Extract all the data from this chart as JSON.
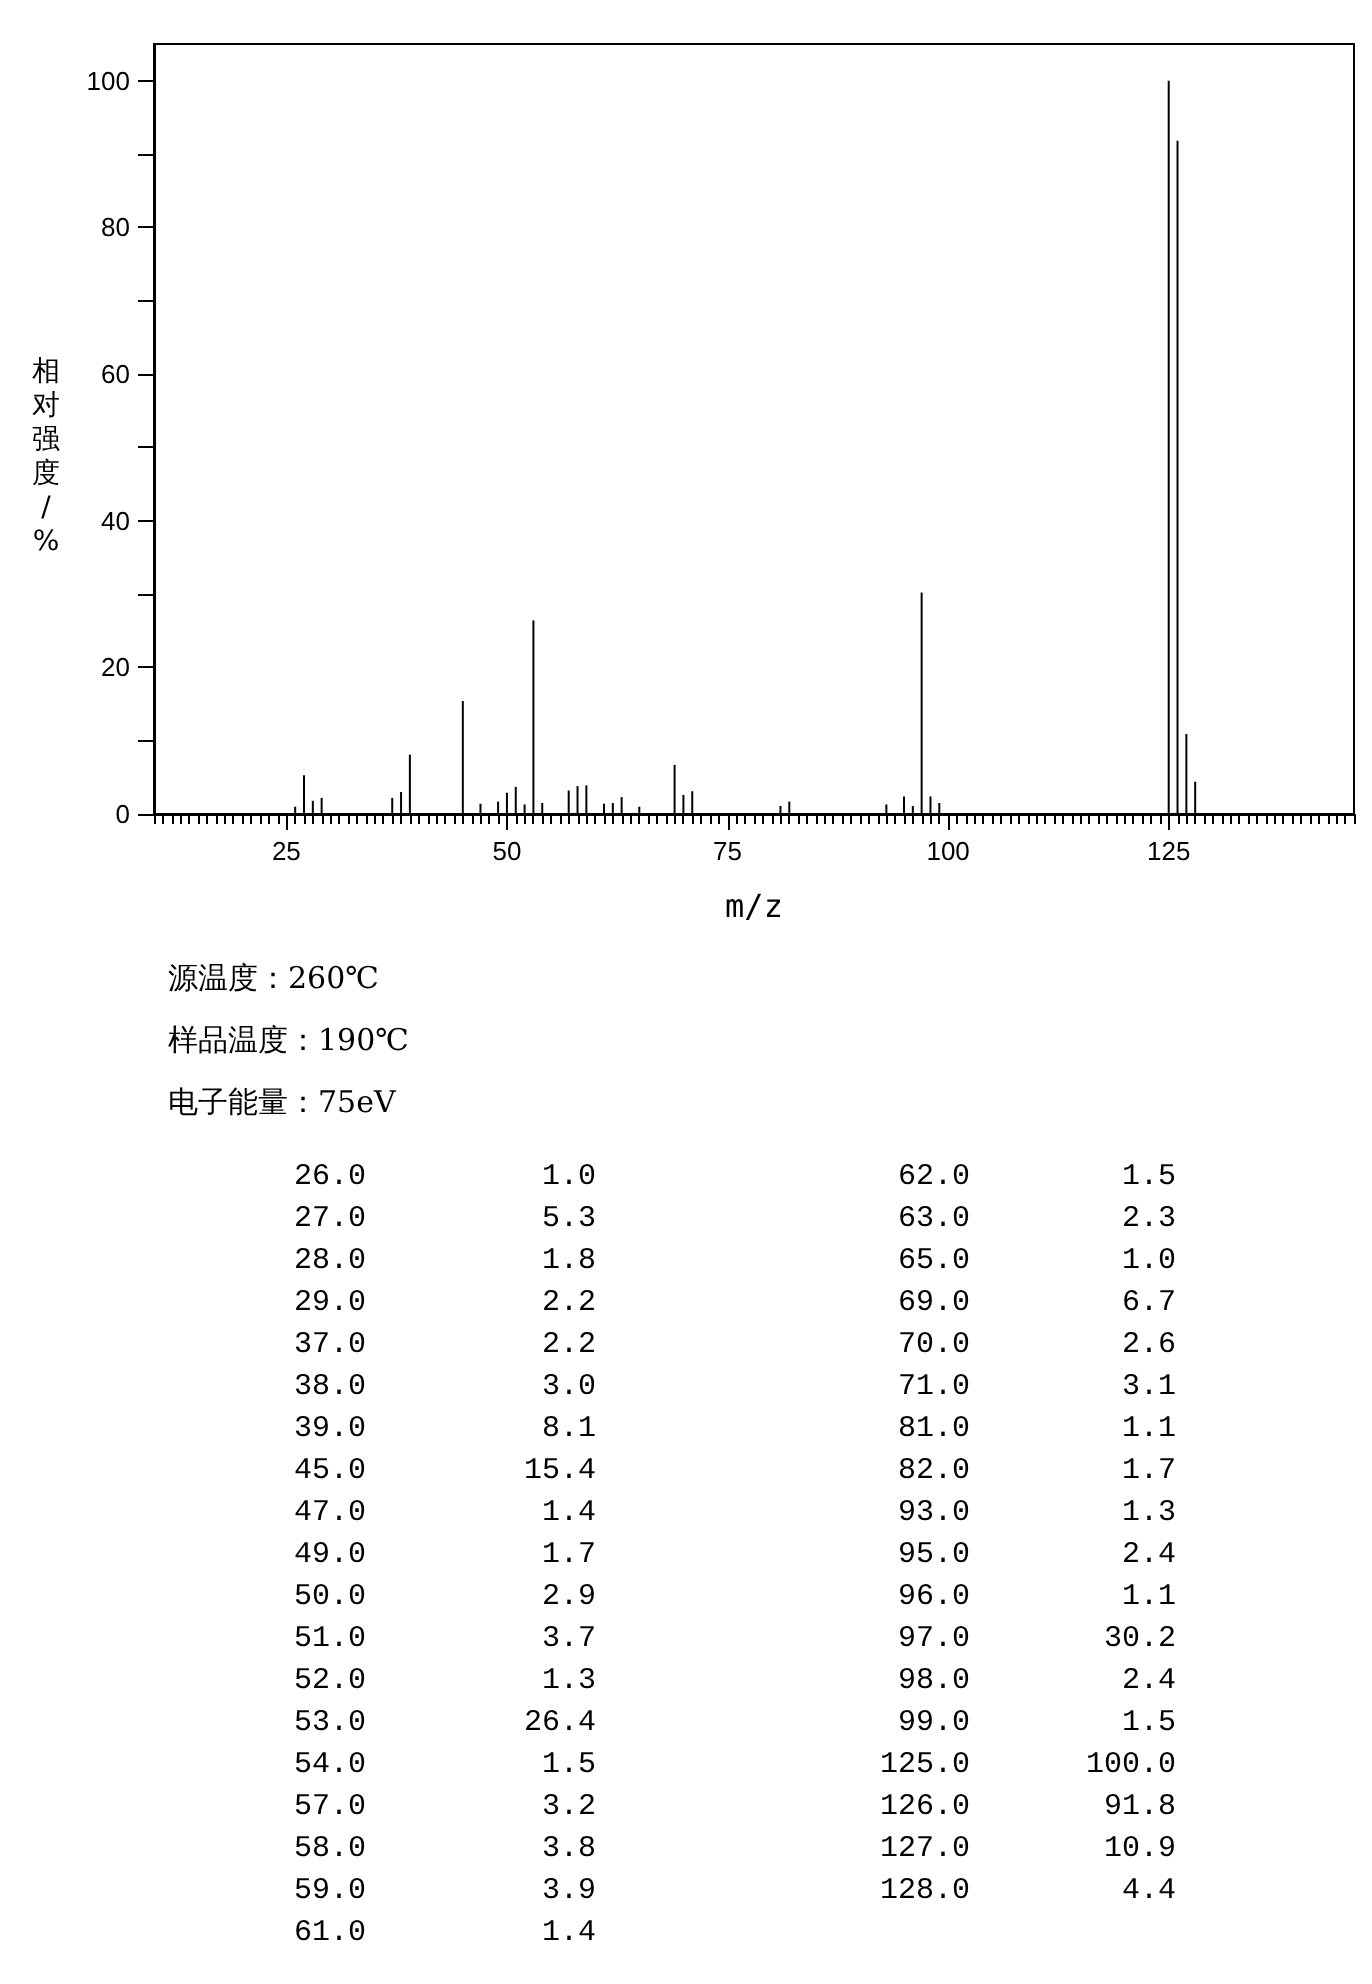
{
  "chart_data": {
    "type": "bar",
    "xlabel": "m/z",
    "ylabel": "相对强度/%",
    "x": [
      26,
      27,
      28,
      29,
      37,
      38,
      39,
      45,
      47,
      49,
      50,
      51,
      52,
      53,
      54,
      57,
      58,
      59,
      61,
      62,
      63,
      65,
      69,
      70,
      71,
      81,
      82,
      93,
      95,
      96,
      97,
      98,
      99,
      125,
      126,
      127,
      128
    ],
    "values": [
      1.0,
      5.3,
      1.8,
      2.2,
      2.2,
      3.0,
      8.1,
      15.4,
      1.4,
      1.7,
      2.9,
      3.7,
      1.3,
      26.4,
      1.5,
      3.2,
      3.8,
      3.9,
      1.4,
      1.5,
      2.3,
      1.0,
      6.7,
      2.6,
      3.1,
      1.1,
      1.7,
      1.3,
      2.4,
      1.1,
      30.2,
      2.4,
      1.5,
      100.0,
      91.8,
      10.9,
      4.4
    ],
    "color": "#000000",
    "xlim": [
      10,
      146
    ],
    "xticks": [
      25,
      50,
      75,
      100,
      125
    ],
    "ylim": [
      0,
      105
    ],
    "yticks": [
      0,
      {
        "value": 10,
        "label": null
      },
      20,
      {
        "value": 30,
        "label": null
      },
      40,
      {
        "value": 50,
        "label": null
      },
      60,
      {
        "value": 70,
        "label": null
      },
      80,
      {
        "value": 90,
        "label": null
      },
      100
    ],
    "grid": false,
    "annotations": [
      "源温度：260℃",
      "样品温度：190℃",
      "电子能量：75eV",
      "26.0 1.0",
      "27.0 5.3",
      "28.0 1.8",
      "29.0 2.2",
      "37.0 2.2",
      "38.0 3.0",
      "39.0 8.1",
      "45.0 15.4",
      "47.0 1.4",
      "49.0 1.7",
      "50.0 2.9",
      "51.0 3.7",
      "52.0 1.3",
      "53.0 26.4",
      "54.0 1.5",
      "57.0 3.2",
      "58.0 3.8",
      "59.0 3.9",
      "61.0 1.4",
      "62.0 1.5",
      "63.0 2.3",
      "65.0 1.0",
      "69.0 6.7",
      "70.0 2.6",
      "71.0 3.1",
      "81.0 1.1",
      "82.0 1.7",
      "93.0 1.3",
      "95.0 2.4",
      "96.0 1.1",
      "97.0 30.2",
      "98.0 2.4",
      "99.0 1.5",
      "125.0 100.0",
      "126.0 91.8",
      "127.0 10.9",
      "128.0 4.4"
    ]
  }
}
